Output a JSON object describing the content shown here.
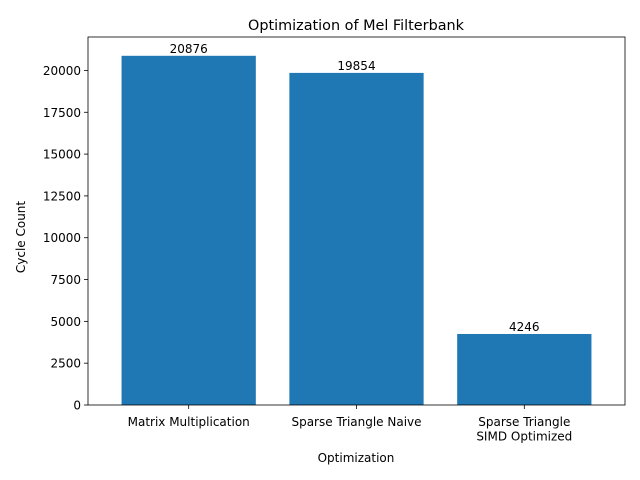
{
  "chart_data": {
    "type": "bar",
    "title": "Optimization of Mel Filterbank",
    "xlabel": "Optimization",
    "ylabel": "Cycle Count",
    "categories": [
      [
        "Matrix Multiplication"
      ],
      [
        "Sparse Triangle Naive"
      ],
      [
        "Sparse Triangle",
        "SIMD Optimized"
      ]
    ],
    "values": [
      20876,
      19854,
      4246
    ],
    "data_labels": [
      "20876",
      "19854",
      "4246"
    ],
    "ylim": [
      0,
      22000
    ],
    "yticks": [
      0,
      2500,
      5000,
      7500,
      10000,
      12500,
      15000,
      17500,
      20000
    ],
    "ytick_labels": [
      "0",
      "2500",
      "5000",
      "7500",
      "10000",
      "12500",
      "15000",
      "17500",
      "20000"
    ],
    "bar_color": "#1f77b4",
    "grid": false,
    "legend": "none"
  }
}
